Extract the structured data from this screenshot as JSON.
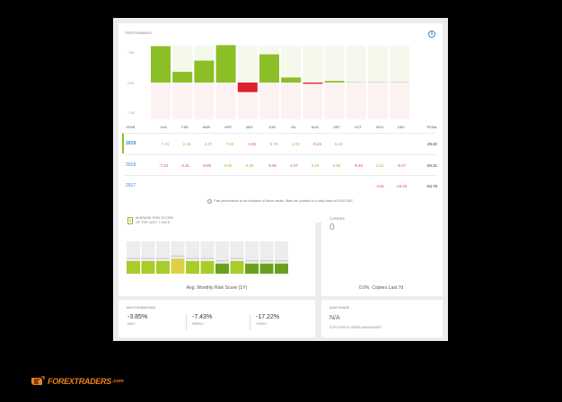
{
  "performance": {
    "title": "Performance",
    "y_ticks": [
      "7.50",
      "0.00",
      "-7.50"
    ],
    "headers": {
      "year": "YEAR",
      "months": [
        "JAN",
        "FEB",
        "MAR",
        "APR",
        "MAY",
        "JUN",
        "JUL",
        "AUG",
        "SEP",
        "OCT",
        "NOV",
        "DEC"
      ],
      "total": "TOTAL"
    },
    "rows": [
      {
        "year": "2019",
        "months": [
          "7.41",
          "2.19",
          "4.47",
          "7.63",
          "-1.94",
          "5.75",
          "1.03",
          "-0.24",
          "0.32",
          "",
          "",
          ""
        ],
        "total": "29.40"
      },
      {
        "year": "2018",
        "months": [
          "-7.23",
          "-4.31",
          "-6.99",
          "0.00",
          "0.35",
          "-5.90",
          "-2.27",
          "4.15",
          "0.85",
          "-9.46",
          "1.52",
          "-5.47"
        ],
        "total": "-26.31"
      },
      {
        "year": "2017",
        "months": [
          "",
          "",
          "",
          "",
          "",
          "",
          "",
          "",
          "",
          "",
          "-4.61",
          "-18.03"
        ],
        "total": "-53.78"
      }
    ],
    "disclaimer": "Past performance is not indicative of future results. Stats are updated on a daily basis at 00:00 GMT."
  },
  "chart_data": {
    "type": "bar",
    "categories": [
      "JAN",
      "FEB",
      "MAR",
      "APR",
      "MAY",
      "JUN",
      "JUL",
      "AUG",
      "SEP",
      "OCT",
      "NOV",
      "DEC"
    ],
    "series": [
      {
        "values": [
          7.41,
          2.19,
          4.47,
          7.63,
          -1.94,
          5.75,
          1.03,
          -0.24,
          0.32,
          0,
          0,
          0
        ]
      }
    ],
    "ylim": [
      -7.5,
      7.5
    ],
    "xlabel": "",
    "ylabel": ""
  },
  "risk": {
    "badge": "5",
    "title_line1": "Average Risk Score",
    "title_line2": "of the last 7 days",
    "bar_levels": [
      4,
      4,
      4,
      5,
      4,
      4,
      3,
      4,
      3,
      3,
      3
    ],
    "caption": "Avg. Monthly Risk Score (1Y)"
  },
  "copiers": {
    "title": "Copiers",
    "value": "0",
    "change": "0.0%",
    "change_label": "Copiers Last 7d"
  },
  "drawdown": {
    "title": "Max Drawdown",
    "items": [
      {
        "value": "-3.85%",
        "label": "Daily"
      },
      {
        "value": "-7.43%",
        "label": "Weekly"
      },
      {
        "value": "-17.22%",
        "label": "Yearly"
      }
    ]
  },
  "aum": {
    "title": "AUM Range",
    "value": "N/A",
    "label": "Copy Assets Under Management"
  },
  "logo": {
    "text": "FOREXTRADERS",
    "suffix": ".com"
  },
  "colors": {
    "positive": "#8cbf26",
    "negative": "#e0202f",
    "risk_high": "#ddd046"
  }
}
